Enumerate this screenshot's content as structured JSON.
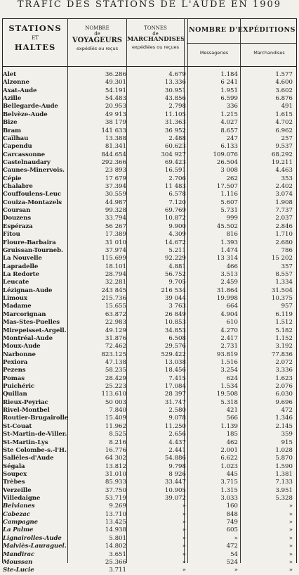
{
  "title": "TRAFIC DES STATIONS DE L'AUDE EN 1909",
  "headers": {
    "stations_main": "STATIONS",
    "stations_et": "ET",
    "stations_haltes": "HALTES",
    "voy_nombre": "NOMBRE",
    "voy_de": "de",
    "voy_main": "VOYAGEURS",
    "voy_sub": "expédiés ou reçus",
    "mar_tonnes": "TONNES",
    "mar_de": "de",
    "mar_main": "MARCHANDISES",
    "mar_sub": "expédiées ou reçues",
    "exp_main": "NOMBRE D'EXPÉDITIONS",
    "exp_mess": "Messageries",
    "exp_march": "Marchandises"
  },
  "rows": [
    {
      "name": "Alet",
      "voyageurs": "36.286",
      "tonnes": "4.679",
      "messageries": "1.184",
      "marchandises": "1.577"
    },
    {
      "name": "Alzonne",
      "voyageurs": "49.301",
      "tonnes": "13.336",
      "messageries": "6 241",
      "marchandises": "4.600"
    },
    {
      "name": "Axat-Aude",
      "voyageurs": "54.191",
      "tonnes": "30.951",
      "messageries": "1.951",
      "marchandises": "3.602"
    },
    {
      "name": "Azille",
      "voyageurs": "54.483",
      "tonnes": "43.856",
      "messageries": "6.599",
      "marchandises": "6.876"
    },
    {
      "name": "Bellegarde-Aude",
      "voyageurs": "20.953",
      "tonnes": "2.798",
      "messageries": "336",
      "marchandises": "491"
    },
    {
      "name": "Belvèze-Aude",
      "voyageurs": "49 913",
      "tonnes": "11.105",
      "messageries": "1.215",
      "marchandises": "1.615"
    },
    {
      "name": "Bize",
      "voyageurs": "38 179",
      "tonnes": "31.363",
      "messageries": "4.027",
      "marchandises": "4.702"
    },
    {
      "name": "Bram",
      "voyageurs": "141 633",
      "tonnes": "36 952",
      "messageries": "8.657",
      "marchandises": "6.962"
    },
    {
      "name": "Caïlhau",
      "voyageurs": "13.388",
      "tonnes": "2.488",
      "messageries": "247",
      "marchandises": "257"
    },
    {
      "name": "Capendu",
      "voyageurs": "81.341",
      "tonnes": "60.623",
      "messageries": "6.133",
      "marchandises": "9.537"
    },
    {
      "name": "Carcassonne",
      "voyageurs": "844.654",
      "tonnes": "304 927",
      "messageries": "109.076",
      "marchandises": "68.292"
    },
    {
      "name": "Castelnaudary",
      "voyageurs": "292.366",
      "tonnes": "69.423",
      "messageries": "26.504",
      "marchandises": "19.211"
    },
    {
      "name": "Caunes-Minervois.",
      "voyageurs": "23 893",
      "tonnes": "16.591",
      "messageries": "3 008",
      "marchandises": "4.463"
    },
    {
      "name": "Cépie",
      "voyageurs": "17 679",
      "tonnes": "2.706",
      "messageries": "262",
      "marchandises": "353"
    },
    {
      "name": "Chalabre",
      "voyageurs": "37.394",
      "tonnes": "11 483",
      "messageries": "17.507",
      "marchandises": "2.402"
    },
    {
      "name": "Couffoulens-Leuc",
      "voyageurs": "30.559",
      "tonnes": "6.578",
      "messageries": "1.116",
      "marchandises": "3.074"
    },
    {
      "name": "Couiza-Montazels",
      "voyageurs": "44.987",
      "tonnes": "7.120",
      "messageries": "5.607",
      "marchandises": "1.908"
    },
    {
      "name": "Coursan",
      "voyageurs": "99.328",
      "tonnes": "69.769",
      "messageries": "5.731",
      "marchandises": "7.737"
    },
    {
      "name": "Douzens",
      "voyageurs": "33.794",
      "tonnes": "10.872",
      "messageries": "999",
      "marchandises": "2.037"
    },
    {
      "name": "Espéraza",
      "voyageurs": "56 267",
      "tonnes": "9.900",
      "messageries": "45.502",
      "marchandises": "2.846"
    },
    {
      "name": "Fitou",
      "voyageurs": "17.389",
      "tonnes": "4.309",
      "messageries": "816",
      "marchandises": "1.710"
    },
    {
      "name": "Floure-Barbaira",
      "voyageurs": "31 010",
      "tonnes": "14.672",
      "messageries": "1.393",
      "marchandises": "2.680"
    },
    {
      "name": "Gruissan-Tourneb.",
      "voyageurs": "37.974",
      "tonnes": "5.211",
      "messageries": "1.474",
      "marchandises": "786"
    },
    {
      "name": "La Nouvelle",
      "voyageurs": "115.699",
      "tonnes": "92.229",
      "messageries": "13 314",
      "marchandises": "15 202"
    },
    {
      "name": "Lapradelle",
      "voyageurs": "18.101",
      "tonnes": "4.881",
      "messageries": "466",
      "marchandises": "357"
    },
    {
      "name": "La Redorte",
      "voyageurs": "28.794",
      "tonnes": "56.752",
      "messageries": "3.513",
      "marchandises": "8.557"
    },
    {
      "name": "Leucate",
      "voyageurs": "32.281",
      "tonnes": "9.705",
      "messageries": "2.459",
      "marchandises": "1.334"
    },
    {
      "name": "Lézignan-Aude",
      "voyageurs": "243 845",
      "tonnes": "216 534",
      "messageries": "31.864",
      "marchandises": "31.504"
    },
    {
      "name": "Limoux",
      "voyageurs": "215.736",
      "tonnes": "39 044",
      "messageries": "19.998",
      "marchandises": "10.375"
    },
    {
      "name": "Madame",
      "voyageurs": "15.655",
      "tonnes": "3 763",
      "messageries": "664",
      "marchandises": "957"
    },
    {
      "name": "Marcorignan",
      "voyageurs": "63.872",
      "tonnes": "26 849",
      "messageries": "4.904",
      "marchandises": "6.119"
    },
    {
      "name": "Mas-Stes-Puelles",
      "voyageurs": "22.983",
      "tonnes": "10.853",
      "messageries": "610",
      "marchandises": "1.512"
    },
    {
      "name": "Mirepeisset-Argell.",
      "voyageurs": "49.129",
      "tonnes": "34.853",
      "messageries": "4.270",
      "marchandises": "5.182"
    },
    {
      "name": "Montréal-Aude",
      "voyageurs": "31.876",
      "tonnes": "6.508",
      "messageries": "2.417",
      "marchandises": "1.152"
    },
    {
      "name": "Moux-Aude",
      "voyageurs": "72.462",
      "tonnes": "29.576",
      "messageries": "2.731",
      "marchandises": "3.192"
    },
    {
      "name": "Narbonne",
      "voyageurs": "823.125",
      "tonnes": "529.422",
      "messageries": "93.819",
      "marchandises": "77.836"
    },
    {
      "name": "Pexiora",
      "voyageurs": "47.138",
      "tonnes": "13.038",
      "messageries": "1.516",
      "marchandises": "2.072"
    },
    {
      "name": "Pezens",
      "voyageurs": "58.235",
      "tonnes": "18.456",
      "messageries": "3.254",
      "marchandises": "3.336"
    },
    {
      "name": "Pomas",
      "voyageurs": "28.429",
      "tonnes": "7.415",
      "messageries": "624",
      "marchandises": "1.623"
    },
    {
      "name": "Puichéric",
      "voyageurs": "25.223",
      "tonnes": "17.084",
      "messageries": "1.534",
      "marchandises": "2.076"
    },
    {
      "name": "Quillan",
      "voyageurs": "113.610",
      "tonnes": "28 397",
      "messageries": "19.508",
      "marchandises": "6.030"
    },
    {
      "name": "Rieux-Peyriac",
      "voyageurs": "50 003",
      "tonnes": "31.747",
      "messageries": "5.318",
      "marchandises": "9.696"
    },
    {
      "name": "Rivel-Montbel",
      "voyageurs": "7.840",
      "tonnes": "2.580",
      "messageries": "421",
      "marchandises": "472"
    },
    {
      "name": "Routier-Brugairolle",
      "voyageurs": "15.409",
      "tonnes": "9.078",
      "messageries": "566",
      "marchandises": "1.346"
    },
    {
      "name": "St-Couat",
      "voyageurs": "11.962",
      "tonnes": "11.250",
      "messageries": "1.139",
      "marchandises": "2.145"
    },
    {
      "name": "St-Martin-de-Viller.",
      "voyageurs": "8.525",
      "tonnes": "2.656",
      "messageries": "185",
      "marchandises": "359"
    },
    {
      "name": "St-Martin-Lys",
      "voyageurs": "8.216",
      "tonnes": "4.437",
      "messageries": "462",
      "marchandises": "915"
    },
    {
      "name": "Ste Colombe-s.-l'H.",
      "voyageurs": "16.776",
      "tonnes": "2.441",
      "messageries": "2.001",
      "marchandises": "1.028"
    },
    {
      "name": "Salléles-d'Aude",
      "voyageurs": "64 302",
      "tonnes": "54.886",
      "messageries": "6.622",
      "marchandises": "5.870"
    },
    {
      "name": "Ségala",
      "voyageurs": "13.812",
      "tonnes": "9.798",
      "messageries": "1.023",
      "marchandises": "1.590"
    },
    {
      "name": "Soupex",
      "voyageurs": "31.010",
      "tonnes": "8 926",
      "messageries": "445",
      "marchandises": "1.381"
    },
    {
      "name": "Trèbes",
      "voyageurs": "85.933",
      "tonnes": "33.447",
      "messageries": "3.715",
      "marchandises": "7.133"
    },
    {
      "name": "Verzeille",
      "voyageurs": "37.750",
      "tonnes": "10.905",
      "messageries": "1.315",
      "marchandises": "3.951"
    },
    {
      "name": "Villedaigne",
      "voyageurs": "53.719",
      "tonnes": "39.072",
      "messageries": "3.033",
      "marchandises": "5.328"
    },
    {
      "name": "Belvianes",
      "voyageurs": "9.269",
      "tonnes": "»",
      "messageries": "160",
      "marchandises": "»",
      "italic": true
    },
    {
      "name": "Cabezac",
      "voyageurs": "13.710",
      "tonnes": "»",
      "messageries": "848",
      "marchandises": "»",
      "italic": true
    },
    {
      "name": "Campagne",
      "voyageurs": "13.425",
      "tonnes": "»",
      "messageries": "749",
      "marchandises": "»",
      "italic": true
    },
    {
      "name": "La Palme",
      "voyageurs": "14.938",
      "tonnes": "»",
      "messageries": "605",
      "marchandises": "»",
      "italic": true
    },
    {
      "name": "Lignairolles-Aude",
      "voyageurs": "5.801",
      "tonnes": "»",
      "messageries": "»",
      "marchandises": "»",
      "italic": true
    },
    {
      "name": "Malviès-Lauraguel.",
      "voyageurs": "14.802",
      "tonnes": "»",
      "messageries": "472",
      "marchandises": "»",
      "italic": true
    },
    {
      "name": "Mandirac",
      "voyageurs": "3.651",
      "tonnes": "»",
      "messageries": "54",
      "marchandises": "»",
      "italic": true
    },
    {
      "name": "Moussan",
      "voyageurs": "25.366",
      "tonnes": "»",
      "messageries": "524",
      "marchandises": "»",
      "italic": true
    },
    {
      "name": "Ste-Lucie",
      "voyageurs": "3.711",
      "tonnes": "»",
      "messageries": "»",
      "marchandises": "»",
      "italic": true
    }
  ]
}
